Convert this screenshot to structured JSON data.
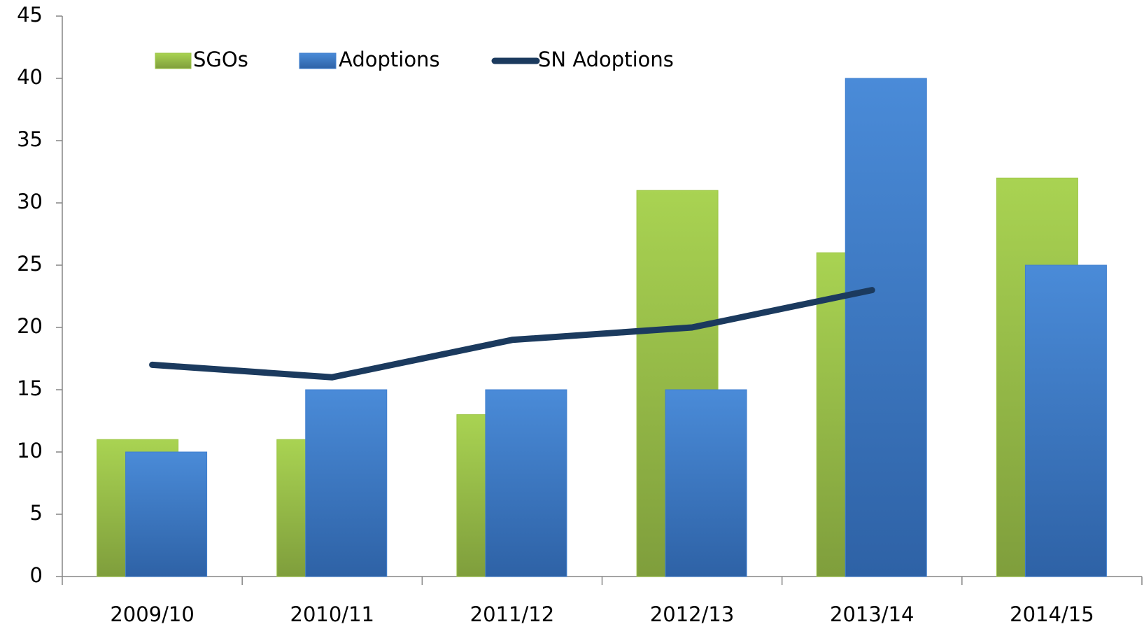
{
  "chart_data": {
    "type": "bar",
    "categories": [
      "2009/10",
      "2010/11",
      "2011/12",
      "2012/13",
      "2013/14",
      "2014/15"
    ],
    "series": [
      {
        "name": "SGOs",
        "color": "#9cc545",
        "values": [
          11,
          11,
          13,
          31,
          26,
          32
        ]
      },
      {
        "name": "Adoptions",
        "color": "#3f7fcf",
        "values": [
          10,
          15,
          15,
          15,
          40,
          25
        ]
      },
      {
        "name": "SN Adoptions",
        "type": "line",
        "color": "#1b3a5e",
        "values": [
          17,
          16,
          19,
          20,
          23,
          null
        ]
      }
    ],
    "ylim": [
      0,
      45
    ],
    "yticks": [
      0,
      5,
      10,
      15,
      20,
      25,
      30,
      35,
      40,
      45
    ],
    "grid": false,
    "legend": "top"
  }
}
